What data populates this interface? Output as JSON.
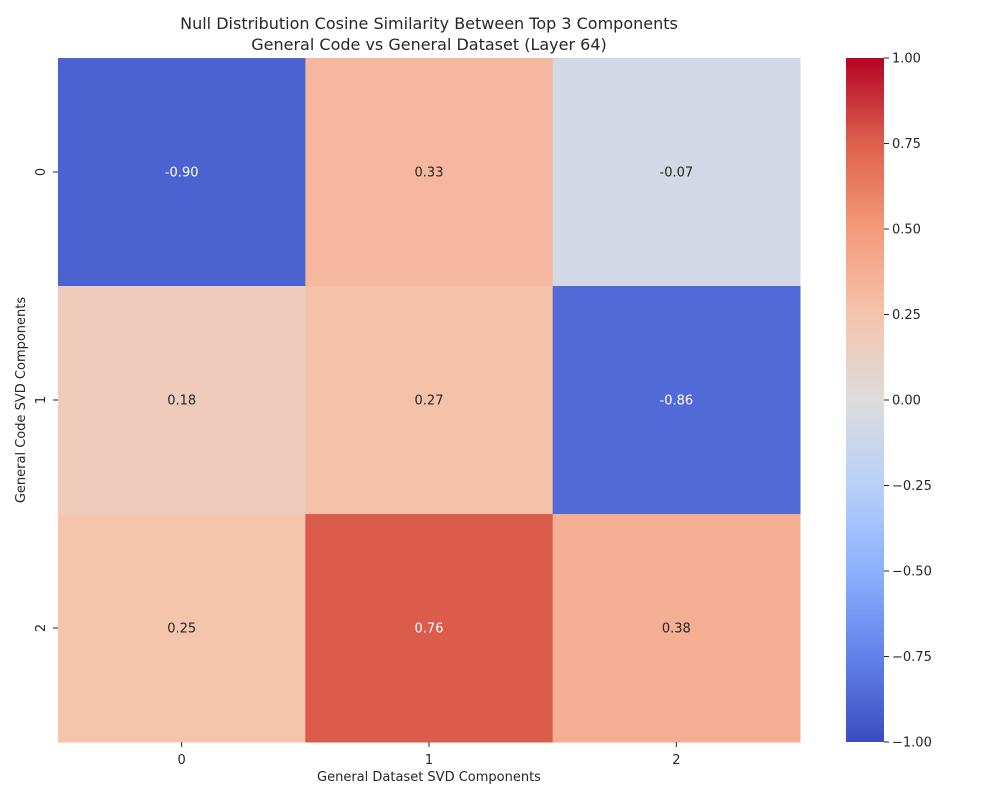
{
  "chart_data": {
    "type": "heatmap",
    "title": "Null Distribution Cosine Similarity Between Top 3 Components",
    "subtitle": "General Code vs General Dataset (Layer 64)",
    "xlabel": "General Dataset SVD Components",
    "ylabel": "General Code SVD Components",
    "x_categories": [
      "0",
      "1",
      "2"
    ],
    "y_categories": [
      "0",
      "1",
      "2"
    ],
    "values": [
      [
        -0.9,
        0.33,
        -0.07
      ],
      [
        0.18,
        0.27,
        -0.86
      ],
      [
        0.25,
        0.76,
        0.38
      ]
    ],
    "value_labels": [
      [
        "-0.90",
        "0.33",
        "-0.07"
      ],
      [
        "0.18",
        "0.27",
        "-0.86"
      ],
      [
        "0.25",
        "0.76",
        "0.38"
      ]
    ],
    "colormap": "coolwarm",
    "vmin": -1.0,
    "vmax": 1.0,
    "colorbar_ticks": [
      1.0,
      0.75,
      0.5,
      0.25,
      0.0,
      -0.25,
      -0.5,
      -0.75,
      -1.0
    ],
    "colorbar_tick_labels": [
      "1.00",
      "0.75",
      "0.50",
      "0.25",
      "0.00",
      "−0.25",
      "−0.50",
      "−0.75",
      "−1.00"
    ],
    "colors": {
      "low": "#3b4cc0",
      "mid": "#dddcdc",
      "high": "#b40426",
      "annotation_text_dark": "#262626",
      "annotation_text_light": "#ffffff"
    }
  }
}
